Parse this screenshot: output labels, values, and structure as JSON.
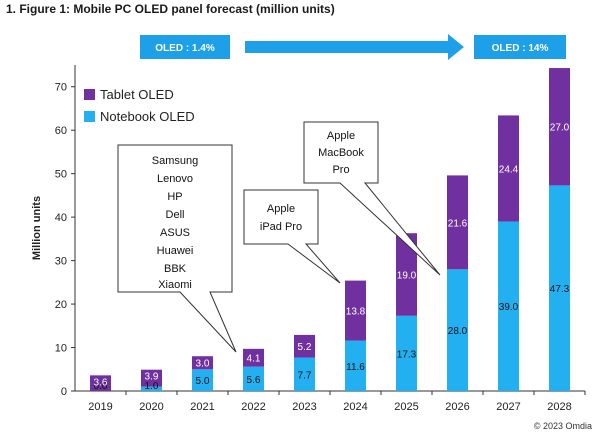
{
  "figure_title": "1. Figure 1: Mobile PC OLED panel forecast (million units)",
  "copyright": "© 2023 Omdia",
  "banners": {
    "start": "OLED : 1.4%",
    "end": "OLED : 14%"
  },
  "callouts": {
    "brands": [
      "Samsung",
      "Lenovo",
      "HP",
      "Dell",
      "ASUS",
      "Huawei",
      "BBK",
      "Xiaomi"
    ],
    "ipad": [
      "Apple",
      "iPad Pro"
    ],
    "macbook": [
      "Apple",
      "MacBook",
      "Pro"
    ]
  },
  "colors": {
    "tablet": "#7030a0",
    "notebook": "#22b0f0",
    "banner": "#1ea0e8",
    "banner_text": "#ffffff"
  },
  "chart_data": {
    "type": "bar",
    "stacked": true,
    "categories": [
      "2019",
      "2020",
      "2021",
      "2022",
      "2023",
      "2024",
      "2025",
      "2026",
      "2027",
      "2028"
    ],
    "series": [
      {
        "name": "Notebook OLED",
        "values": [
          0.0,
          1.0,
          5.0,
          5.6,
          7.7,
          11.6,
          17.3,
          28.0,
          39.0,
          47.3
        ],
        "labels": [
          "0.0",
          "1.0",
          "5.0",
          "5.6",
          "7.7",
          "11.6",
          "17.3",
          "28.0",
          "39.0",
          "47.3"
        ]
      },
      {
        "name": "Tablet OLED",
        "values": [
          3.6,
          3.9,
          3.0,
          4.1,
          5.2,
          13.8,
          19.0,
          21.6,
          24.4,
          27.0
        ],
        "labels": [
          "3.6",
          "3.9",
          "3.0",
          "4.1",
          "5.2",
          "13.8",
          "19.0",
          "21.6",
          "24.4",
          "27.0"
        ]
      }
    ],
    "ylabel": "Million units",
    "ylim": [
      0,
      75
    ],
    "yticks": [
      0,
      10,
      20,
      30,
      40,
      50,
      60,
      70
    ],
    "ytick_labels": [
      "0",
      "10",
      "20",
      "30",
      "40",
      "50",
      "60",
      "70"
    ],
    "legend": [
      "Tablet OLED",
      "Notebook OLED"
    ],
    "legend_position": "top-left"
  }
}
